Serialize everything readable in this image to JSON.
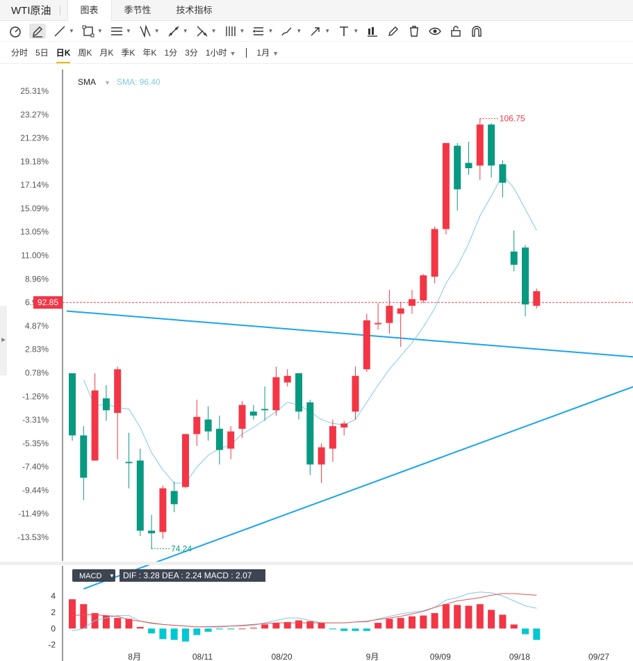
{
  "tabs": {
    "title": "WTI原油",
    "items": [
      {
        "label": "图表",
        "active": true
      },
      {
        "label": "季节性",
        "active": false
      },
      {
        "label": "技术指标",
        "active": false
      }
    ]
  },
  "toolbar": {
    "icons": [
      "gauge-icon",
      "pen-icon",
      "line-icon",
      "rect-icon",
      "channel-icon",
      "pattern-icon",
      "measure-icon",
      "fib-icon",
      "grid-icon",
      "parallel-icon",
      "brush-icon",
      "arrow-icon",
      "text-icon",
      "candle-icon",
      "pencil-icon",
      "trash-icon",
      "eye-icon",
      "lock-icon",
      "magnet-icon"
    ]
  },
  "periods": {
    "items": [
      {
        "label": "分时",
        "active": false
      },
      {
        "label": "5日",
        "active": false
      },
      {
        "label": "日K",
        "active": true
      },
      {
        "label": "周K",
        "active": false
      },
      {
        "label": "月K",
        "active": false
      },
      {
        "label": "季K",
        "active": false
      },
      {
        "label": "年K",
        "active": false
      },
      {
        "label": "1分",
        "active": false
      },
      {
        "label": "3分",
        "active": false
      },
      {
        "label": "1小时",
        "active": false
      }
    ],
    "range": "1月"
  },
  "colors": {
    "up": "#f23645",
    "down": "#089981",
    "sma": "#7ec8e8",
    "trendline": "#1aa3f0",
    "dif": "#7ec8e8",
    "dea": "#e8504f",
    "macd_up": "#f23645",
    "macd_down": "#00c8d2"
  },
  "chart_data": {
    "type": "candlestick",
    "indicator_label": "SMA",
    "indicator_value_label": "SMA: 96.40",
    "y_axis_percent_ticks": [
      "25.31%",
      "23.27%",
      "21.23%",
      "19.18%",
      "17.14%",
      "15.09%",
      "13.05%",
      "11.00%",
      "8.96%",
      "6.91%",
      "4.87%",
      "2.83%",
      "0.78%",
      "-1.26%",
      "-3.31%",
      "-5.35%",
      "-7.40%",
      "-9.44%",
      "-11.49%",
      "-13.53%"
    ],
    "y_axis_percent_range": [
      -13.53,
      25.31
    ],
    "base_price": 86.85,
    "current_price_label": "92.85",
    "current_price": 92.85,
    "high_label": "106.75",
    "high_price": 106.75,
    "low_label": "74.24",
    "low_price": 74.24,
    "x_axis_ticks": [
      {
        "label": "8月",
        "index": 5.5
      },
      {
        "label": "08/11",
        "index": 11.5
      },
      {
        "label": "08/20",
        "index": 18.5
      },
      {
        "label": "9月",
        "index": 26.5
      },
      {
        "label": "09/09",
        "index": 32.5
      },
      {
        "label": "09/18",
        "index": 39.5
      },
      {
        "label": "09/27",
        "index": 46.5
      }
    ],
    "candles": [
      {
        "o": 87.5,
        "h": 87.5,
        "l": 82.4,
        "c": 82.8
      },
      {
        "o": 82.8,
        "h": 83.5,
        "l": 77.9,
        "c": 79.6
      },
      {
        "o": 80.9,
        "h": 87.5,
        "l": 80.9,
        "c": 86.2
      },
      {
        "o": 85.6,
        "h": 86.6,
        "l": 83.9,
        "c": 84.7
      },
      {
        "o": 84.5,
        "h": 88.0,
        "l": 81.0,
        "c": 87.8
      },
      {
        "o": 80.8,
        "h": 83.0,
        "l": 78.8,
        "c": 80.7
      },
      {
        "o": 80.9,
        "h": 81.8,
        "l": 75.2,
        "c": 75.6
      },
      {
        "o": 75.6,
        "h": 76.8,
        "l": 74.2,
        "c": 75.4
      },
      {
        "o": 75.5,
        "h": 79.0,
        "l": 75.0,
        "c": 78.8
      },
      {
        "o": 78.6,
        "h": 79.3,
        "l": 77.0,
        "c": 77.6
      },
      {
        "o": 78.9,
        "h": 82.9,
        "l": 78.8,
        "c": 82.9
      },
      {
        "o": 82.9,
        "h": 85.5,
        "l": 82.0,
        "c": 84.2
      },
      {
        "o": 84.0,
        "h": 85.0,
        "l": 82.4,
        "c": 83.1
      },
      {
        "o": 83.3,
        "h": 84.3,
        "l": 80.6,
        "c": 81.7
      },
      {
        "o": 81.8,
        "h": 83.5,
        "l": 81.0,
        "c": 83.1
      },
      {
        "o": 83.3,
        "h": 85.4,
        "l": 82.6,
        "c": 85.1
      },
      {
        "o": 84.6,
        "h": 85.1,
        "l": 84.0,
        "c": 84.3
      },
      {
        "o": 84.8,
        "h": 86.5,
        "l": 83.9,
        "c": 84.7
      },
      {
        "o": 84.7,
        "h": 88.0,
        "l": 84.3,
        "c": 87.2
      },
      {
        "o": 86.8,
        "h": 87.8,
        "l": 86.5,
        "c": 87.3
      },
      {
        "o": 87.5,
        "h": 87.5,
        "l": 84.0,
        "c": 84.6
      },
      {
        "o": 85.3,
        "h": 85.5,
        "l": 79.8,
        "c": 80.6
      },
      {
        "o": 80.6,
        "h": 82.2,
        "l": 79.2,
        "c": 81.9
      },
      {
        "o": 81.8,
        "h": 84.0,
        "l": 80.8,
        "c": 83.5
      },
      {
        "o": 83.4,
        "h": 83.9,
        "l": 82.8,
        "c": 83.7
      },
      {
        "o": 84.6,
        "h": 88.0,
        "l": 84.0,
        "c": 87.3
      },
      {
        "o": 87.8,
        "h": 92.0,
        "l": 87.6,
        "c": 91.5
      },
      {
        "o": 91.2,
        "h": 92.8,
        "l": 90.8,
        "c": 91.3
      },
      {
        "o": 91.3,
        "h": 93.8,
        "l": 90.5,
        "c": 92.6
      },
      {
        "o": 92.0,
        "h": 92.9,
        "l": 89.5,
        "c": 92.4
      },
      {
        "o": 92.6,
        "h": 93.8,
        "l": 92.0,
        "c": 93.1
      },
      {
        "o": 93.0,
        "h": 95.0,
        "l": 92.8,
        "c": 94.9
      },
      {
        "o": 94.8,
        "h": 98.6,
        "l": 94.3,
        "c": 98.4
      },
      {
        "o": 98.4,
        "h": 104.9,
        "l": 98.0,
        "c": 104.9
      },
      {
        "o": 104.7,
        "h": 104.9,
        "l": 99.8,
        "c": 101.4
      },
      {
        "o": 103.4,
        "h": 105.0,
        "l": 102.5,
        "c": 103.0
      },
      {
        "o": 103.2,
        "h": 106.75,
        "l": 102.1,
        "c": 106.3
      },
      {
        "o": 106.3,
        "h": 106.4,
        "l": 102.3,
        "c": 103.2
      },
      {
        "o": 103.3,
        "h": 103.6,
        "l": 100.8,
        "c": 101.9
      },
      {
        "o": 96.7,
        "h": 98.3,
        "l": 95.2,
        "c": 95.7
      },
      {
        "o": 97.0,
        "h": 97.2,
        "l": 91.8,
        "c": 92.7
      },
      {
        "o": 92.6,
        "h": 93.9,
        "l": 92.4,
        "c": 93.7
      }
    ],
    "sma": [
      null,
      87.0,
      85.0,
      85.2,
      84.9,
      84.8,
      83.4,
      81.5,
      80.2,
      79.2,
      79.2,
      80.4,
      81.3,
      81.8,
      82.1,
      82.9,
      83.4,
      84.0,
      84.6,
      85.3,
      85.1,
      84.6,
      84.0,
      83.7,
      83.6,
      84.0,
      85.3,
      86.6,
      87.8,
      88.8,
      89.8,
      91.0,
      92.4,
      94.3,
      95.6,
      97.3,
      99.4,
      100.9,
      102.5,
      101.5,
      99.9,
      98.3
    ],
    "trendlines": [
      {
        "from": {
          "index": -0.5,
          "price": 92.2
        },
        "to": {
          "index": 51.5,
          "price": 88.6
        }
      },
      {
        "from": {
          "index": 1.0,
          "price": 71.2
        },
        "to": {
          "index": 51.5,
          "price": 87.1
        }
      }
    ],
    "macd": {
      "label": "MACD",
      "summary": "DIF : 3.28  DEA : 2.24  MACD : 2.07",
      "y_ticks": [
        "4",
        "2",
        "0",
        "-2"
      ],
      "y_range": [
        -2.2,
        5.5
      ],
      "hist": [
        3.6,
        3.0,
        1.9,
        1.6,
        1.3,
        1.2,
        0.2,
        -0.6,
        -1.3,
        -1.4,
        -1.6,
        -0.8,
        -0.4,
        -0.1,
        -0.1,
        0.0,
        0.1,
        0.5,
        0.7,
        0.8,
        1.0,
        0.9,
        0.7,
        -0.1,
        -0.3,
        -0.3,
        -0.3,
        0.7,
        1.2,
        1.3,
        1.5,
        1.6,
        1.9,
        3.0,
        2.9,
        2.8,
        3.0,
        2.3,
        1.7,
        0.5,
        -0.7,
        -1.4
      ],
      "dif": [
        -0.3,
        0.0,
        1.0,
        1.3,
        1.6,
        1.6,
        0.9,
        0.6,
        0.5,
        0.4,
        0.3,
        0.2,
        0.25,
        0.3,
        0.3,
        0.3,
        0.4,
        0.7,
        1.0,
        1.3,
        1.3,
        1.0,
        0.7,
        0.7,
        0.7,
        0.8,
        0.8,
        1.2,
        1.5,
        1.8,
        2.0,
        2.2,
        2.6,
        3.5,
        3.8,
        4.3,
        4.5,
        4.4,
        4.0,
        3.4,
        2.8,
        2.5
      ],
      "dea": [
        1.6,
        1.7,
        1.7,
        1.6,
        1.5,
        1.1,
        0.9,
        0.7,
        0.5,
        0.4,
        0.3,
        0.2,
        0.2,
        0.2,
        0.3,
        0.4,
        0.5,
        0.6,
        0.7,
        0.7,
        0.7,
        0.7,
        0.7,
        0.7,
        0.7,
        0.8,
        0.9,
        1.1,
        1.3,
        1.5,
        1.8,
        2.1,
        2.6,
        3.0,
        3.4,
        3.6,
        3.8,
        4.1,
        4.3,
        4.3,
        4.2,
        4.1
      ]
    }
  }
}
